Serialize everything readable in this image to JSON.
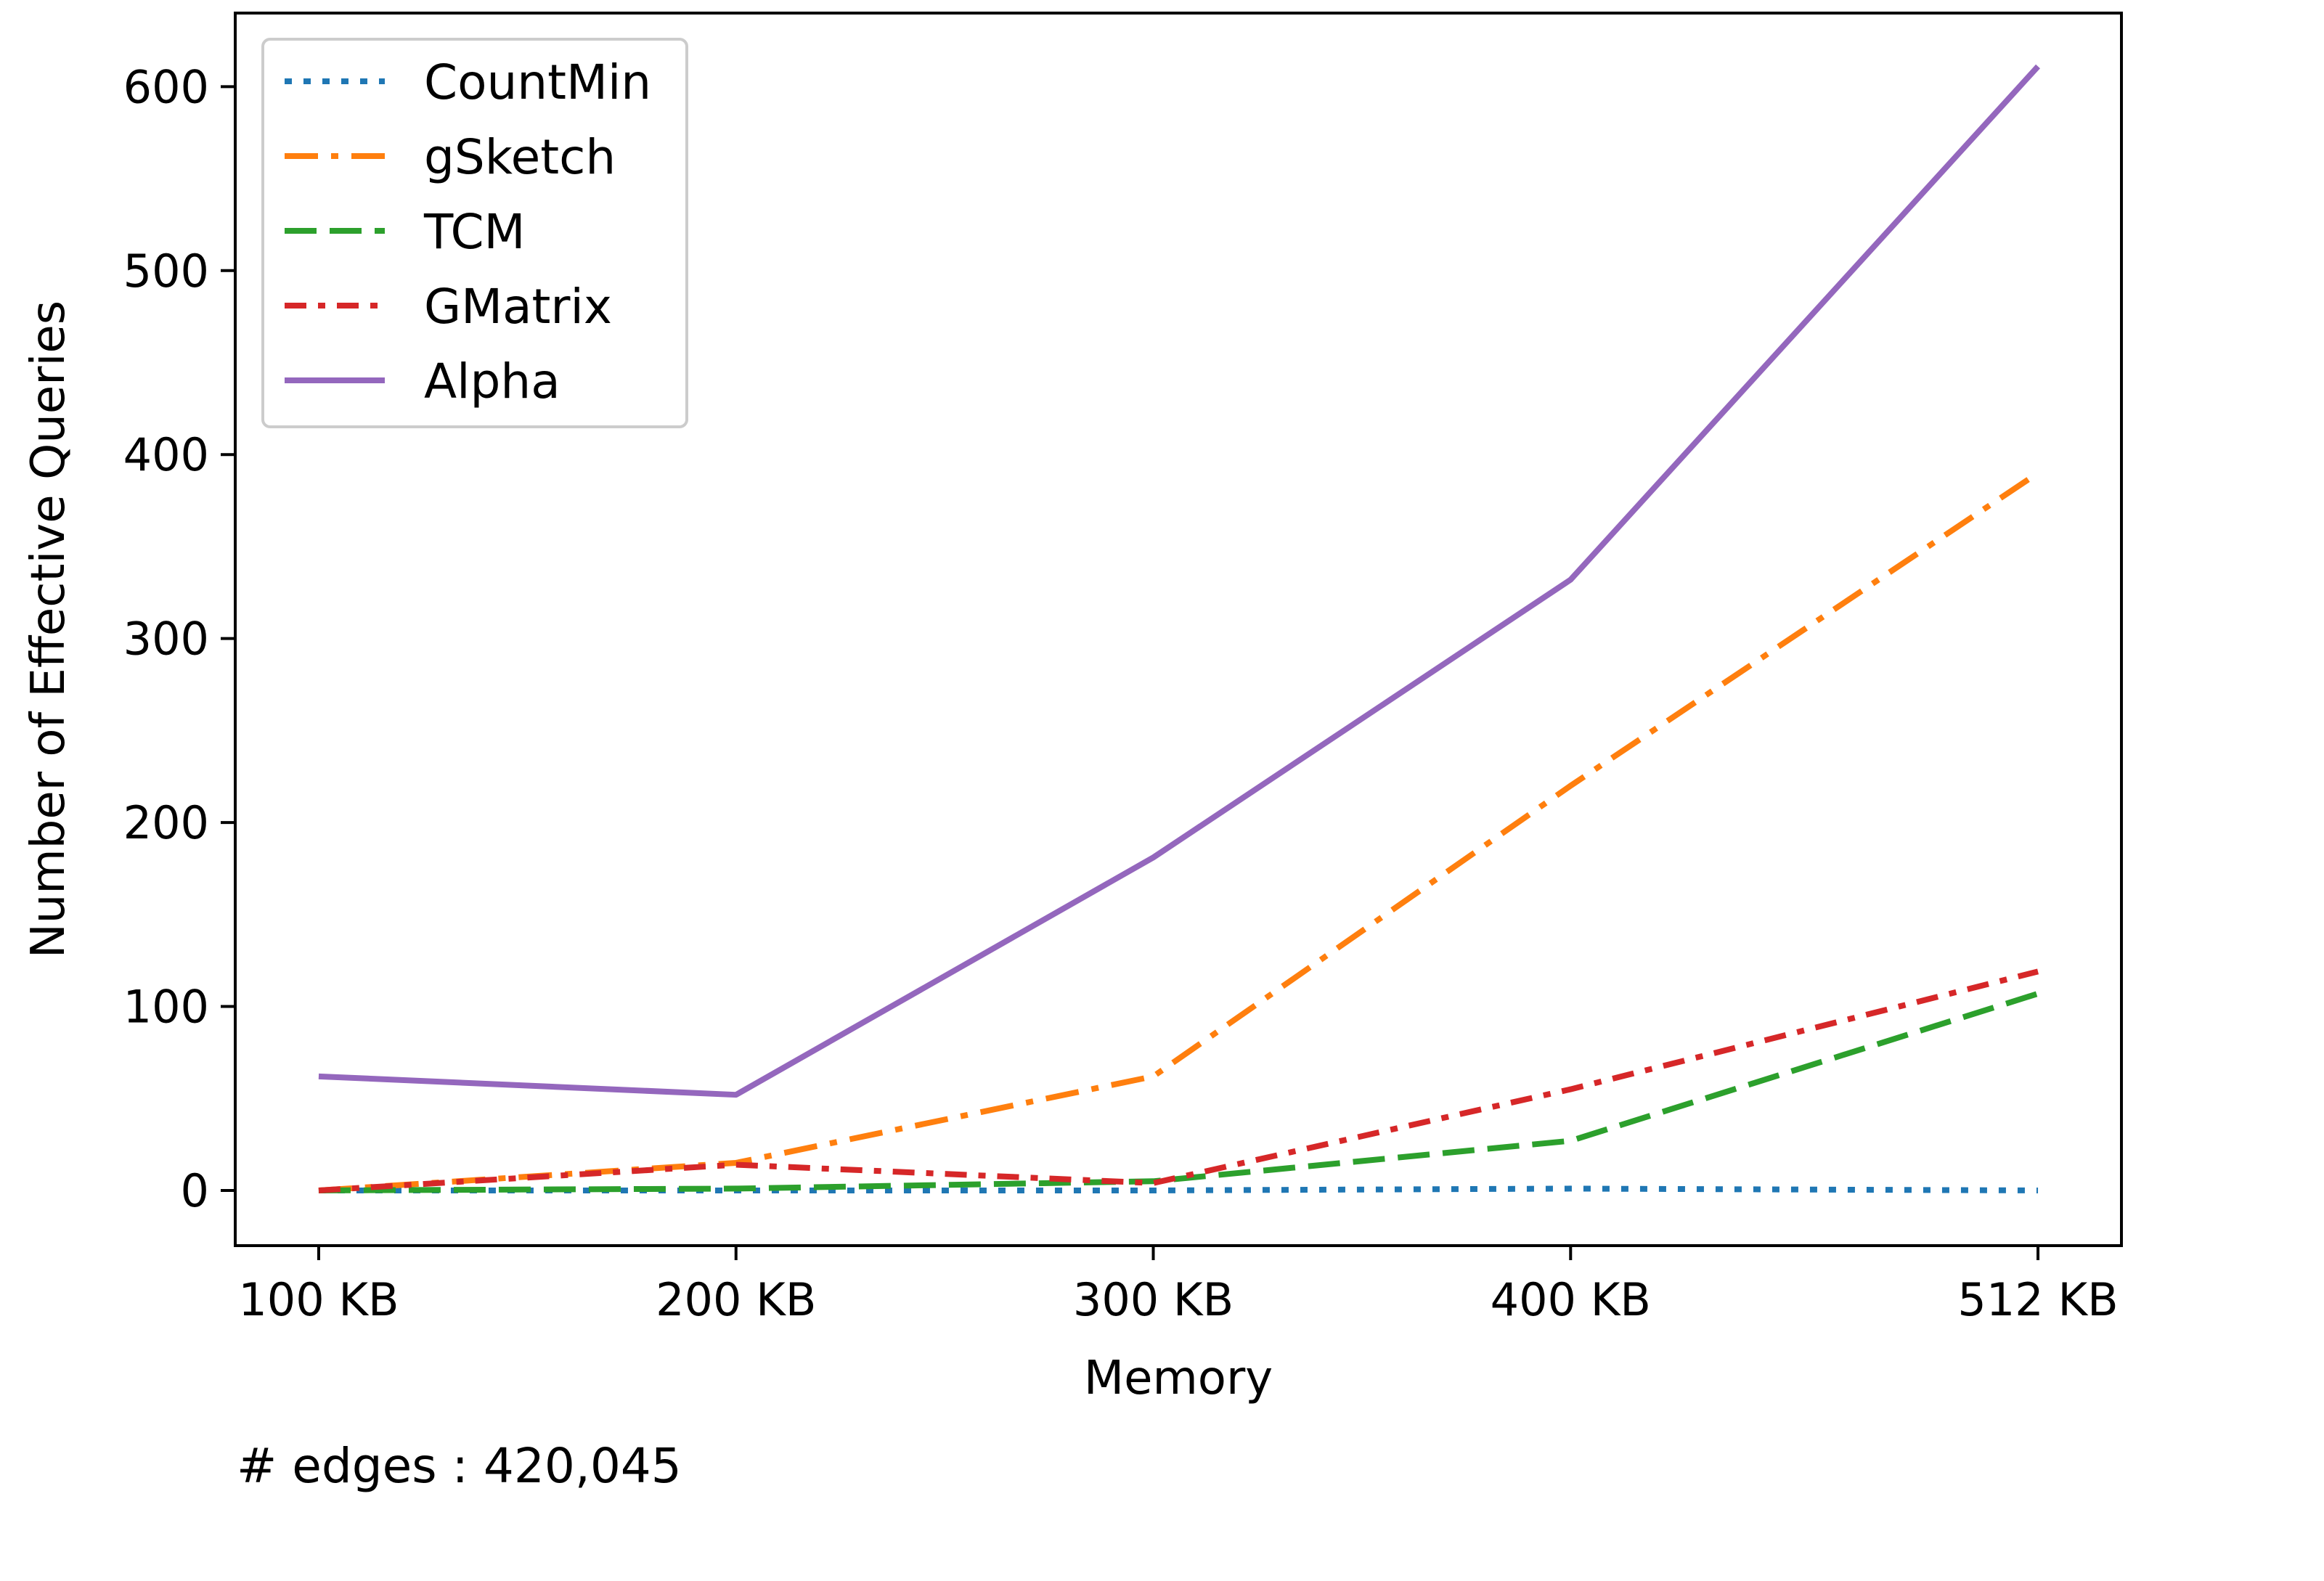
{
  "chart_data": {
    "type": "line",
    "title": "",
    "xlabel": "Memory",
    "ylabel": "Number of Effective Queries",
    "categories": [
      "100 KB",
      "200 KB",
      "300 KB",
      "400 KB",
      "512 KB"
    ],
    "x_values_kb": [
      100,
      200,
      300,
      400,
      512
    ],
    "ylim": [
      -30,
      640
    ],
    "yticks": [
      0,
      100,
      200,
      300,
      400,
      500,
      600
    ],
    "grid": false,
    "legend_position": "top-left",
    "series": [
      {
        "name": "CountMin",
        "color": "#1f77b4",
        "style": "dotted",
        "values": [
          0,
          0,
          0,
          1,
          0
        ]
      },
      {
        "name": "gSketch",
        "color": "#ff7f0e",
        "style": "dashdot",
        "values": [
          0,
          15,
          62,
          220,
          390
        ]
      },
      {
        "name": "TCM",
        "color": "#2ca02c",
        "style": "dashed",
        "values": [
          0,
          1,
          5,
          27,
          107
        ]
      },
      {
        "name": "GMatrix",
        "color": "#d62728",
        "style": "densely-dashdot",
        "values": [
          0,
          14,
          4,
          55,
          119
        ]
      },
      {
        "name": "Alpha",
        "color": "#9467bd",
        "style": "solid",
        "values": [
          62,
          52,
          181,
          332,
          611
        ]
      }
    ]
  },
  "annotation": {
    "text": "# edges : 420,045"
  }
}
